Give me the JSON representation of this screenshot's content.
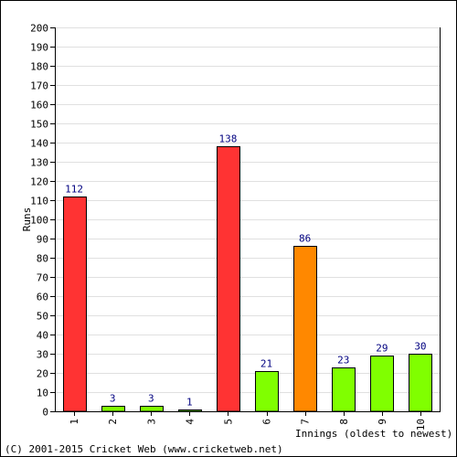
{
  "chart_data": {
    "type": "bar",
    "title": "",
    "xlabel": "Innings (oldest to newest)",
    "ylabel": "Runs",
    "ylim": [
      0,
      200
    ],
    "ytick_step": 10,
    "grid": true,
    "categories": [
      "1",
      "2",
      "3",
      "4",
      "5",
      "6",
      "7",
      "8",
      "9",
      "10"
    ],
    "values": [
      112,
      3,
      3,
      1,
      138,
      21,
      86,
      23,
      29,
      30
    ],
    "data_labels": [
      "112",
      "3",
      "3",
      "1",
      "138",
      "21",
      "86",
      "23",
      "29",
      "30"
    ],
    "bar_colors": [
      "#ff3333",
      "#80ff00",
      "#80ff00",
      "#80ff00",
      "#ff3333",
      "#80ff00",
      "#ff8800",
      "#80ff00",
      "#80ff00",
      "#80ff00"
    ]
  },
  "colors": {
    "grid": "#e0e0e0",
    "axis": "#000000",
    "data_label": "#000080",
    "frame": "#000000"
  },
  "footer": {
    "copyright": "(C) 2001-2015 Cricket Web (www.cricketweb.net)"
  }
}
